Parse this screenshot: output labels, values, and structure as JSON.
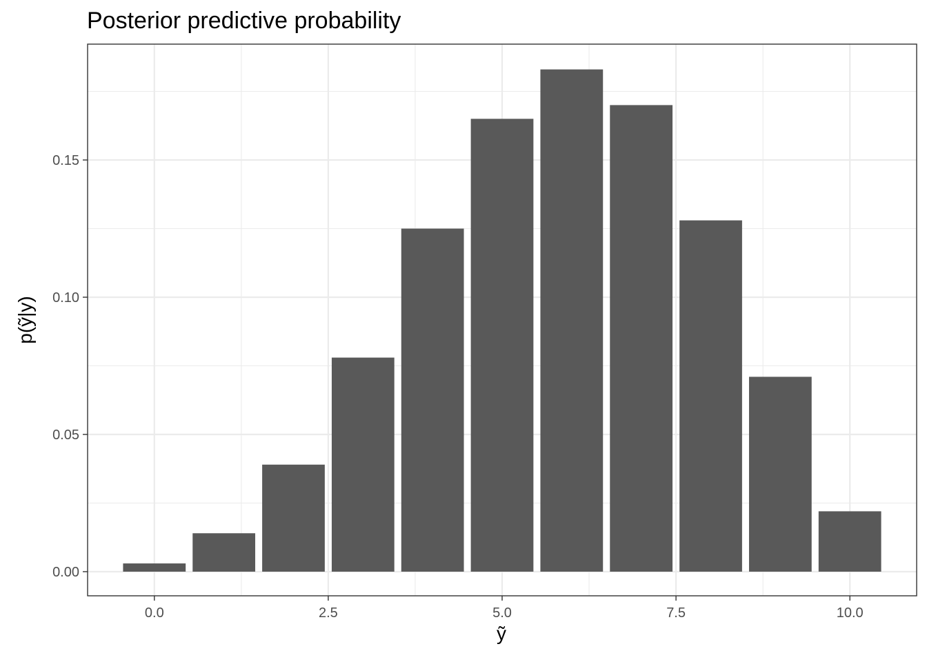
{
  "chart_data": {
    "type": "bar",
    "title": "Posterior predictive probability",
    "xlabel": "ỹ",
    "ylabel": "p(ỹ|y)",
    "x": [
      0,
      1,
      2,
      3,
      4,
      5,
      6,
      7,
      8,
      9,
      10
    ],
    "values": [
      0.003,
      0.014,
      0.039,
      0.078,
      0.125,
      0.165,
      0.183,
      0.17,
      0.128,
      0.071,
      0.022
    ],
    "xlim": [
      -0.5,
      10.5
    ],
    "ylim": [
      0,
      0.183
    ],
    "x_ticks": [
      0.0,
      2.5,
      5.0,
      7.5,
      10.0
    ],
    "x_tick_labels": [
      "0.0",
      "2.5",
      "5.0",
      "7.5",
      "10.0"
    ],
    "y_ticks": [
      0.0,
      0.05,
      0.1,
      0.15
    ],
    "y_tick_labels": [
      "0.00",
      "0.05",
      "0.10",
      "0.15"
    ],
    "bar_color": "#595959",
    "grid": true,
    "legend": "none"
  }
}
